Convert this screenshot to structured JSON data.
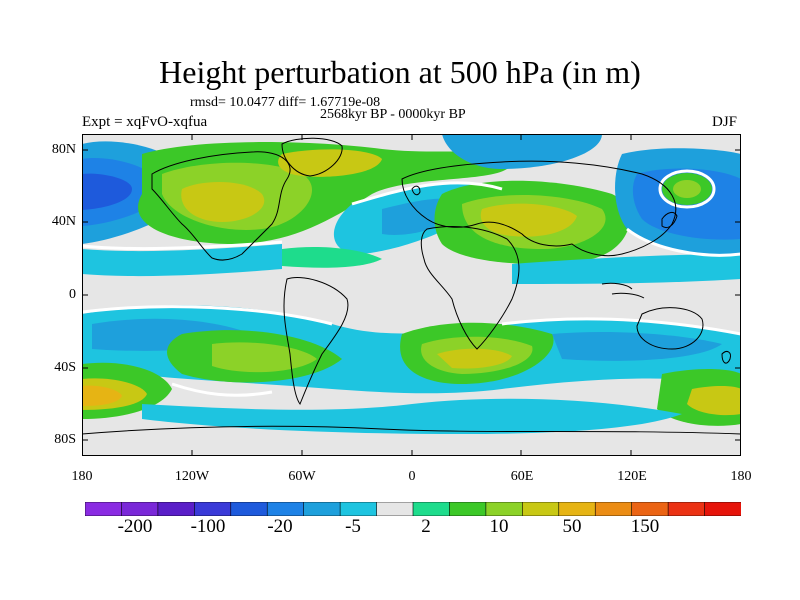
{
  "title": "Height perturbation at 500 hPa (in m)",
  "stats": "rmsd= 10.0477 diff= 1.67719e-08",
  "period": "2568kyr BP - 0000kyr BP",
  "experiment": "Expt = xqFvO-xqfua",
  "season": "DJF",
  "lat_ticks": [
    "80N",
    "40N",
    "0",
    "40S",
    "80S"
  ],
  "lon_ticks": [
    "180",
    "120W",
    "60W",
    "0",
    "60E",
    "120E",
    "180"
  ],
  "colorbar": {
    "colors": [
      "#8a2be2",
      "#7a28d8",
      "#5a1ec8",
      "#3a3ad8",
      "#1e5adc",
      "#1e82e6",
      "#1ea0dc",
      "#1ec4e0",
      "#e6e6e6",
      "#1edc8c",
      "#3cc828",
      "#8cd228",
      "#c8c814",
      "#e6b414",
      "#eb8c14",
      "#eb6414",
      "#eb3214",
      "#e6140a"
    ],
    "labels": [
      "-200",
      "-100",
      "-20",
      "-5",
      "2",
      "10",
      "50",
      "150"
    ]
  },
  "map_colors": {
    "zero": "#e6e6e6",
    "pos1": "#1edc8c",
    "pos2": "#3cc828",
    "pos3": "#8cd228",
    "pos4": "#c8c814",
    "pos5": "#e6b414",
    "neg1": "#1ec4e0",
    "neg2": "#1ea0dc",
    "neg3": "#1e82e6",
    "neg4": "#1e5adc",
    "contour": "#ffffff",
    "coast": "#000000"
  }
}
